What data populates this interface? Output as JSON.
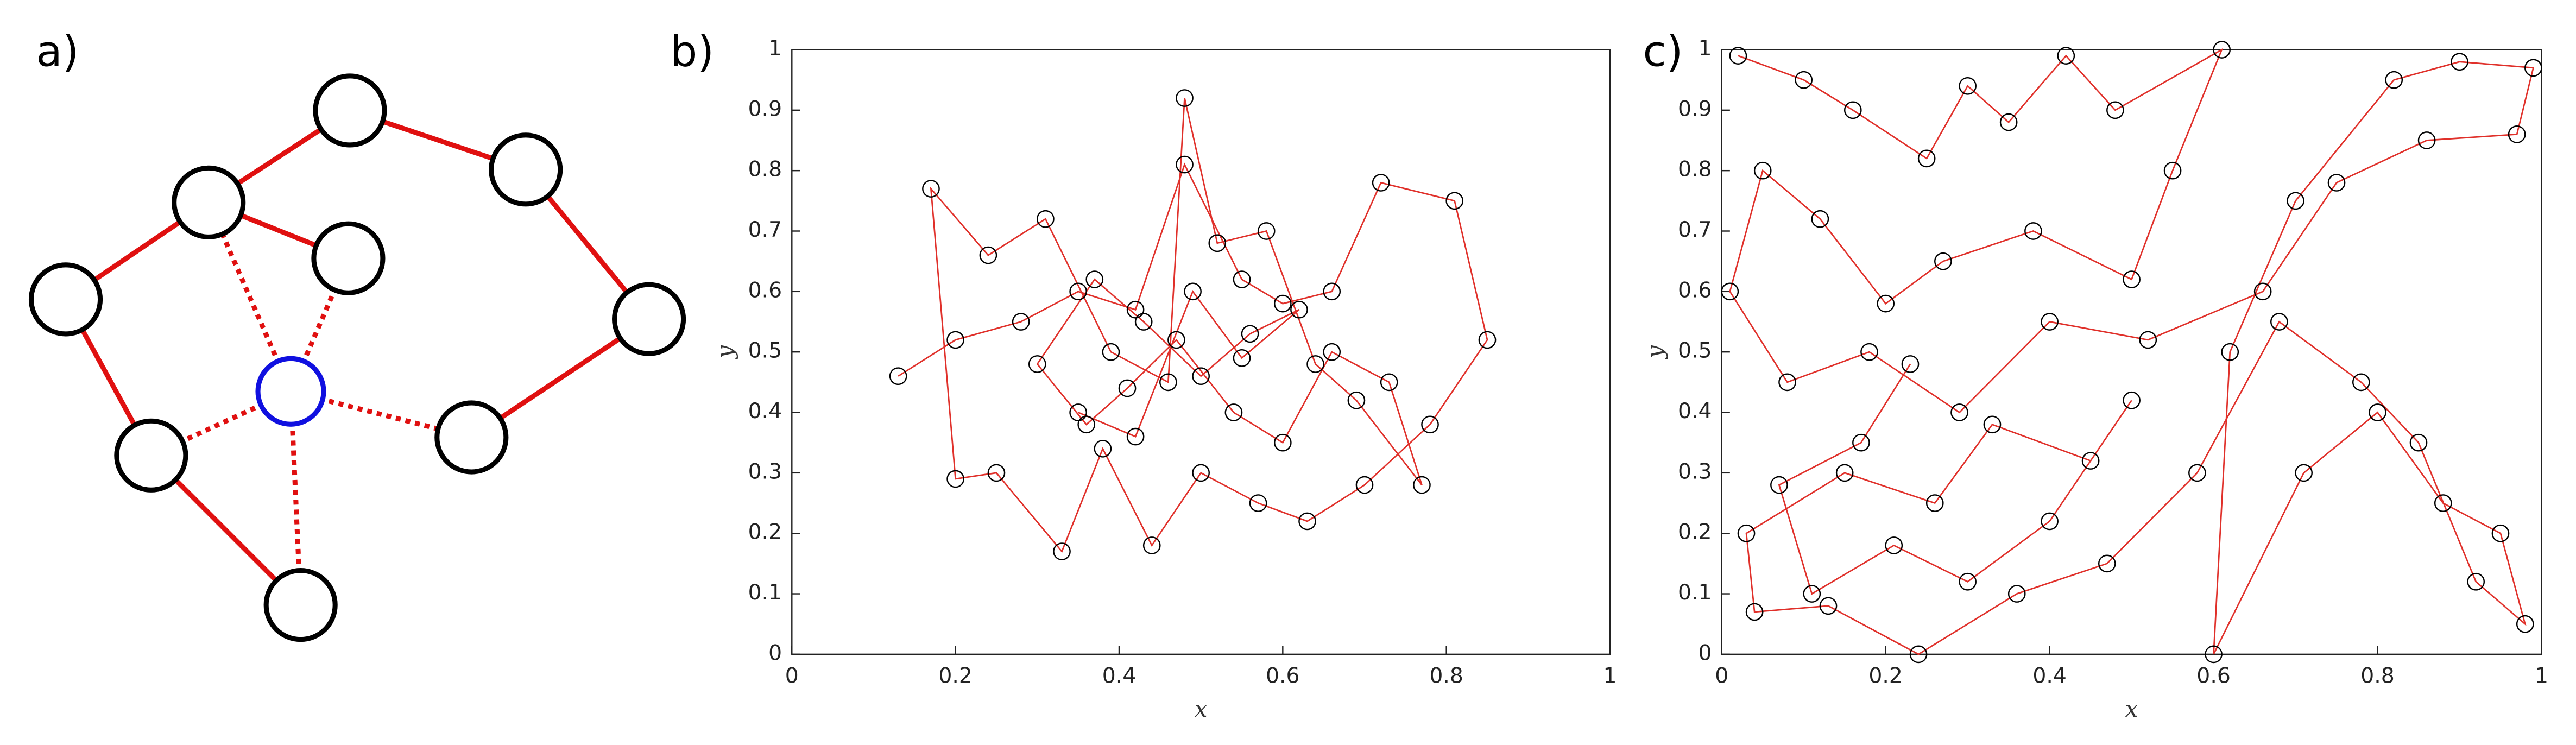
{
  "panel_a": {
    "label": "a)"
  },
  "chart_data": [
    {
      "type": "line",
      "label": "b)",
      "xlabel": "x",
      "ylabel": "y",
      "xlim": [
        0,
        1
      ],
      "ylim": [
        0,
        1
      ],
      "xticks": [
        0,
        0.2,
        0.4,
        0.6,
        0.8,
        1
      ],
      "yticks": [
        0,
        0.1,
        0.2,
        0.3,
        0.4,
        0.5,
        0.6,
        0.7,
        0.8,
        0.9,
        1
      ],
      "x": [
        0.13,
        0.2,
        0.28,
        0.35,
        0.42,
        0.48,
        0.55,
        0.6,
        0.66,
        0.72,
        0.81,
        0.85,
        0.78,
        0.7,
        0.63,
        0.57,
        0.5,
        0.44,
        0.38,
        0.33,
        0.25,
        0.2,
        0.17,
        0.24,
        0.31,
        0.39,
        0.46,
        0.48,
        0.52,
        0.58,
        0.64,
        0.69,
        0.77,
        0.73,
        0.66,
        0.6,
        0.54,
        0.47,
        0.41,
        0.36,
        0.3,
        0.37,
        0.43,
        0.5,
        0.56,
        0.62,
        0.55,
        0.49,
        0.42,
        0.35
      ],
      "series": [
        {
          "color": "#e0302a",
          "marker_color": "#000000",
          "values": [
            0.46,
            0.52,
            0.55,
            0.6,
            0.57,
            0.81,
            0.62,
            0.58,
            0.6,
            0.78,
            0.75,
            0.52,
            0.38,
            0.28,
            0.22,
            0.25,
            0.3,
            0.18,
            0.34,
            0.17,
            0.3,
            0.29,
            0.77,
            0.66,
            0.72,
            0.5,
            0.45,
            0.92,
            0.68,
            0.7,
            0.48,
            0.42,
            0.28,
            0.45,
            0.5,
            0.35,
            0.4,
            0.52,
            0.44,
            0.38,
            0.48,
            0.62,
            0.55,
            0.46,
            0.53,
            0.57,
            0.49,
            0.6,
            0.36,
            0.4
          ]
        }
      ]
    },
    {
      "type": "line",
      "label": "c)",
      "xlabel": "x",
      "ylabel": "y",
      "xlim": [
        0,
        1
      ],
      "ylim": [
        0,
        1
      ],
      "xticks": [
        0,
        0.2,
        0.4,
        0.6,
        0.8,
        1
      ],
      "yticks": [
        0,
        0.1,
        0.2,
        0.3,
        0.4,
        0.5,
        0.6,
        0.7,
        0.8,
        0.9,
        1
      ],
      "x": [
        0.02,
        0.1,
        0.16,
        0.25,
        0.3,
        0.35,
        0.42,
        0.48,
        0.61,
        0.55,
        0.5,
        0.38,
        0.27,
        0.2,
        0.12,
        0.05,
        0.01,
        0.08,
        0.18,
        0.29,
        0.4,
        0.52,
        0.66,
        0.75,
        0.86,
        0.97,
        0.99,
        0.9,
        0.82,
        0.7,
        0.62,
        0.6,
        0.71,
        0.8,
        0.88,
        0.95,
        0.98,
        0.92,
        0.85,
        0.78,
        0.68,
        0.58,
        0.47,
        0.36,
        0.24,
        0.13,
        0.04,
        0.03,
        0.15,
        0.26,
        0.33,
        0.45,
        0.5,
        0.4,
        0.3,
        0.21,
        0.11,
        0.07,
        0.17,
        0.23
      ],
      "series": [
        {
          "color": "#e0302a",
          "marker_color": "#000000",
          "values": [
            0.99,
            0.95,
            0.9,
            0.82,
            0.94,
            0.88,
            0.99,
            0.9,
            1.0,
            0.8,
            0.62,
            0.7,
            0.65,
            0.58,
            0.72,
            0.8,
            0.6,
            0.45,
            0.5,
            0.4,
            0.55,
            0.52,
            0.6,
            0.78,
            0.85,
            0.86,
            0.97,
            0.98,
            0.95,
            0.75,
            0.5,
            0.0,
            0.3,
            0.4,
            0.25,
            0.2,
            0.05,
            0.12,
            0.35,
            0.45,
            0.55,
            0.3,
            0.15,
            0.1,
            0.0,
            0.08,
            0.07,
            0.2,
            0.3,
            0.25,
            0.38,
            0.32,
            0.42,
            0.22,
            0.12,
            0.18,
            0.1,
            0.28,
            0.35,
            0.48
          ]
        }
      ]
    }
  ]
}
